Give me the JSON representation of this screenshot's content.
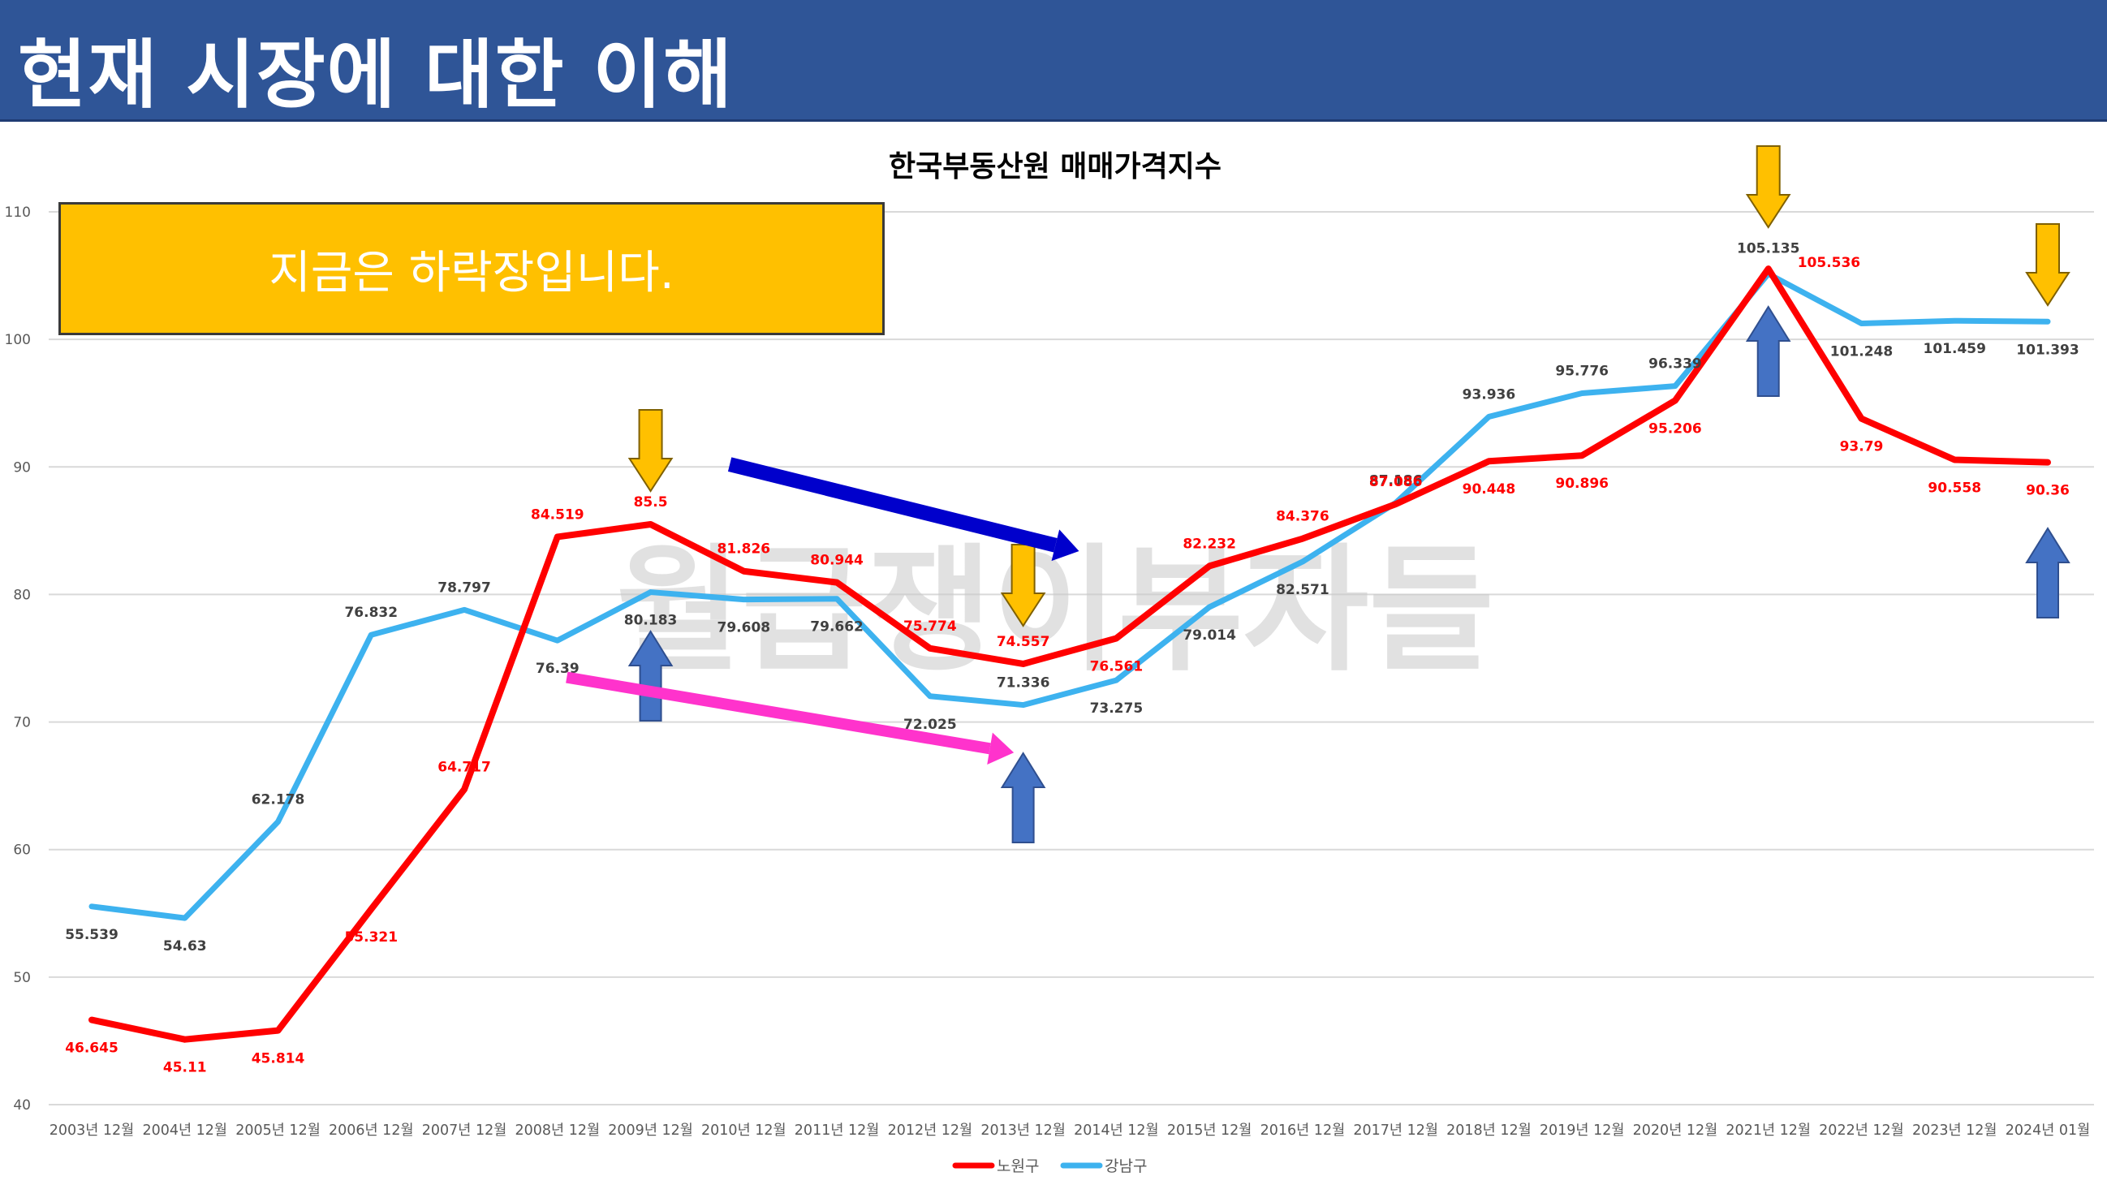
{
  "header": {
    "title": "현재 시장에 대한 이해"
  },
  "callout": {
    "text": "지금은 하락장입니다."
  },
  "watermark": {
    "text": "월급쟁이부자들"
  },
  "colors": {
    "header_bg": "#2f5597",
    "nowon": "#ff0000",
    "gangnam": "#3db2ef",
    "callout_bg": "#ffc000",
    "down_arrow": "#ffc000",
    "up_arrow": "#4472c4",
    "trend_blue": "#0000cc",
    "trend_pink": "#ff33cc"
  },
  "chart_data": {
    "type": "line",
    "title": "한국부동산원 매매가격지수",
    "ylim": [
      40,
      110
    ],
    "yticks": [
      40,
      50,
      60,
      70,
      80,
      90,
      100,
      110
    ],
    "grid": true,
    "legend_position": "bottom",
    "categories": [
      "2003년 12월",
      "2004년 12월",
      "2005년 12월",
      "2006년 12월",
      "2007년 12월",
      "2008년 12월",
      "2009년 12월",
      "2010년 12월",
      "2011년 12월",
      "2012년 12월",
      "2013년 12월",
      "2014년 12월",
      "2015년 12월",
      "2016년 12월",
      "2017년 12월",
      "2018년 12월",
      "2019년 12월",
      "2020년 12월",
      "2021년 12월",
      "2022년 12월",
      "2023년 12월",
      "2024년 01월"
    ],
    "series": [
      {
        "name": "노원구",
        "color": "#ff0000",
        "values": [
          46.645,
          45.11,
          45.814,
          55.321,
          64.717,
          84.519,
          85.5,
          81.826,
          80.944,
          75.774,
          74.557,
          76.561,
          82.232,
          84.376,
          87.086,
          90.448,
          90.896,
          95.206,
          105.536,
          93.79,
          90.558,
          90.36
        ],
        "labels": [
          "46.645",
          "45.11",
          "45.814",
          "55.321",
          "64.717",
          "84.519",
          "85.5",
          "81.826",
          "80.944",
          "75.774",
          "74.557",
          "76.561",
          "82.232",
          "84.376",
          "87.086",
          "90.448",
          "90.896",
          "95.206",
          "105.536",
          "93.79",
          "90.558",
          "90.36"
        ]
      },
      {
        "name": "강남구",
        "color": "#3db2ef",
        "values": [
          55.539,
          54.63,
          62.178,
          76.832,
          78.797,
          76.39,
          80.183,
          79.608,
          79.662,
          72.025,
          71.336,
          73.275,
          79.014,
          82.571,
          87.186,
          93.936,
          95.776,
          96.339,
          105.135,
          101.248,
          101.459,
          101.393
        ],
        "labels": [
          "55.539",
          "54.63",
          "62.178",
          "76.832",
          "78.797",
          "76.39",
          "80.183",
          "79.608",
          "79.662",
          "72.025",
          "71.336",
          "73.275",
          "79.014",
          "82.571",
          "87.186",
          "93.936",
          "95.776",
          "96.339",
          "105.135",
          "101.248",
          "101.459",
          "101.393"
        ]
      }
    ],
    "annotations": {
      "down_arrows_at": [
        6,
        10,
        18,
        21
      ],
      "up_arrows_at": [
        6,
        10,
        18,
        21
      ],
      "trend_arrows": [
        {
          "color": "#0000cc",
          "from": [
            6.85,
            90.2
          ],
          "to": [
            10.6,
            83.4
          ]
        },
        {
          "color": "#ff33cc",
          "from": [
            5.1,
            73.5
          ],
          "to": [
            9.9,
            67.6
          ]
        }
      ]
    }
  }
}
